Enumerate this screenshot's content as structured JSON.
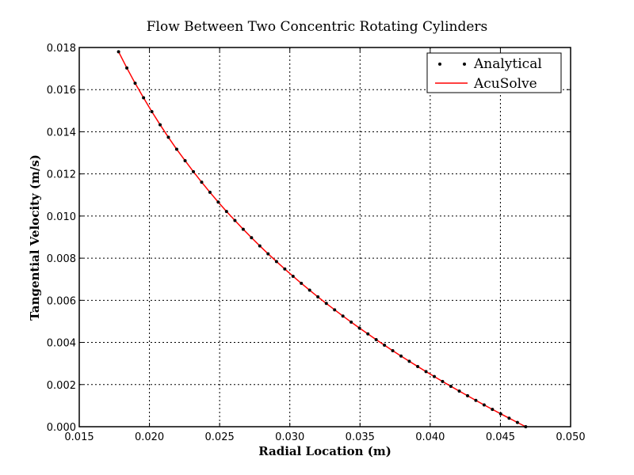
{
  "chart_data": {
    "type": "line",
    "title": "Flow Between Two Concentric Rotating Cylinders",
    "xlabel": "Radial Location (m)",
    "ylabel": "Tangential Velocity (m/s)",
    "xlim": [
      0.015,
      0.05
    ],
    "ylim": [
      0.0,
      0.018
    ],
    "xticks": [
      "0.015",
      "0.020",
      "0.025",
      "0.030",
      "0.035",
      "0.040",
      "0.045",
      "0.050"
    ],
    "yticks": [
      "0.000",
      "0.002",
      "0.004",
      "0.006",
      "0.008",
      "0.010",
      "0.012",
      "0.014",
      "0.016",
      "0.018"
    ],
    "grid": true,
    "legend_position": "top-right",
    "x": [
      0.0178,
      0.01839,
      0.01898,
      0.01958,
      0.02017,
      0.02076,
      0.02135,
      0.02194,
      0.02254,
      0.02313,
      0.02372,
      0.02431,
      0.0249,
      0.02549,
      0.02609,
      0.02668,
      0.02727,
      0.02786,
      0.02845,
      0.02905,
      0.02964,
      0.03023,
      0.03082,
      0.03141,
      0.032,
      0.0326,
      0.03319,
      0.03378,
      0.03437,
      0.03496,
      0.03556,
      0.03615,
      0.03674,
      0.03733,
      0.03792,
      0.03851,
      0.03911,
      0.0397,
      0.04029,
      0.04088,
      0.04147,
      0.04207,
      0.04266,
      0.04325,
      0.04384,
      0.04443,
      0.04502,
      0.04562,
      0.04621,
      0.0468
    ],
    "series": [
      {
        "name": "Analytical",
        "style": "markers",
        "color": "#000000",
        "values": [
          0.0178,
          0.01703,
          0.016302,
          0.015612,
          0.014957,
          0.014333,
          0.013738,
          0.01317,
          0.012627,
          0.012106,
          0.011607,
          0.011126,
          0.010663,
          0.010218,
          0.009788,
          0.009373,
          0.008972,
          0.008584,
          0.008207,
          0.007842,
          0.007487,
          0.007141,
          0.006806,
          0.00648,
          0.006161,
          0.005851,
          0.005549,
          0.005253,
          0.004964,
          0.004682,
          0.004405,
          0.004134,
          0.003869,
          0.003609,
          0.003354,
          0.003104,
          0.002858,
          0.002617,
          0.00238,
          0.002147,
          0.001918,
          0.001692,
          0.001469,
          0.00125,
          0.001034,
          0.000822,
          0.000612,
          0.000406,
          0.000202,
          0.0
        ]
      },
      {
        "name": "AcuSolve",
        "style": "line",
        "color": "#ff0000",
        "values": [
          0.0178,
          0.01703,
          0.016302,
          0.015612,
          0.014957,
          0.014333,
          0.013738,
          0.01317,
          0.012627,
          0.012106,
          0.011607,
          0.011126,
          0.010663,
          0.010218,
          0.009788,
          0.009373,
          0.008972,
          0.008584,
          0.008207,
          0.007842,
          0.007487,
          0.007141,
          0.006806,
          0.00648,
          0.006161,
          0.005851,
          0.005549,
          0.005253,
          0.004964,
          0.004682,
          0.004405,
          0.004134,
          0.003869,
          0.003609,
          0.003354,
          0.003104,
          0.002858,
          0.002617,
          0.00238,
          0.002147,
          0.001918,
          0.001692,
          0.001469,
          0.00125,
          0.001034,
          0.000822,
          0.000612,
          0.000406,
          0.000202,
          0.0
        ]
      }
    ]
  }
}
